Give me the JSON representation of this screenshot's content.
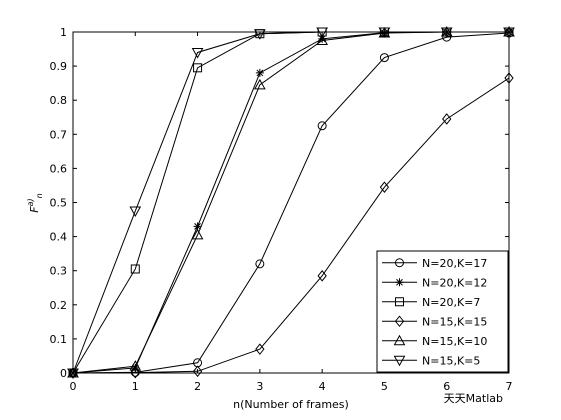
{
  "chart_data": {
    "type": "line",
    "xlabel": "n(Number of frames)",
    "ylabel_base": "F",
    "ylabel_sup": "a)",
    "ylabel_sub": "n",
    "x": [
      0,
      1,
      2,
      3,
      4,
      5,
      6,
      7
    ],
    "xlim": [
      0,
      7
    ],
    "xticks": [
      0,
      1,
      2,
      3,
      4,
      5,
      6,
      7
    ],
    "ylim": [
      0,
      1
    ],
    "yticks": [
      0,
      0.1,
      0.2,
      0.3,
      0.4,
      0.5,
      0.6,
      0.7,
      0.8,
      0.9,
      1
    ],
    "legend": "bottom-right",
    "series": [
      {
        "name": "N=20,K=17",
        "color": "#000000",
        "marker": "circle",
        "values": [
          0,
          0.002,
          0.03,
          0.32,
          0.725,
          0.925,
          0.985,
          0.997
        ]
      },
      {
        "name": "N=20,K=12",
        "color": "#000000",
        "marker": "star",
        "values": [
          0,
          0.015,
          0.43,
          0.88,
          0.98,
          0.998,
          1,
          1
        ]
      },
      {
        "name": "N=20,K=7",
        "color": "#000000",
        "marker": "square",
        "values": [
          0,
          0.305,
          0.895,
          0.995,
          1,
          1,
          1,
          1
        ]
      },
      {
        "name": "N=15,K=15",
        "color": "#000000",
        "marker": "diamond",
        "values": [
          0,
          0.001,
          0.005,
          0.07,
          0.285,
          0.545,
          0.745,
          0.865
        ]
      },
      {
        "name": "N=15,K=10",
        "color": "#000000",
        "marker": "triangle-up",
        "values": [
          0,
          0.02,
          0.405,
          0.845,
          0.975,
          0.997,
          1,
          1
        ]
      },
      {
        "name": "N=15,K=5",
        "color": "#000000",
        "marker": "triangle-down",
        "values": [
          0,
          0.475,
          0.94,
          0.995,
          1,
          1,
          1,
          1
        ]
      }
    ],
    "watermark": "天天Matlab"
  }
}
